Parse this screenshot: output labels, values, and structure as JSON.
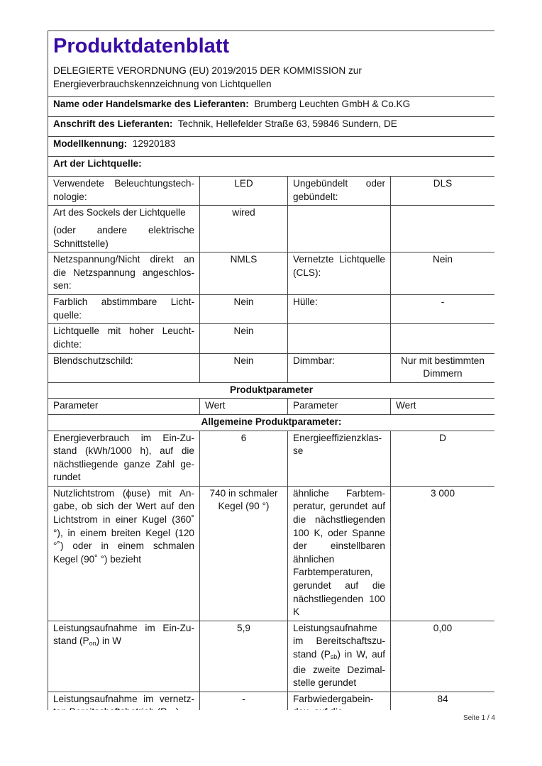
{
  "title": "Produktdatenblatt",
  "subtitle_line1": "DELEGIERTE VERORDNUNG (EU) 2019/2015 DER KOMMISSION zur",
  "subtitle_line2": "Energieverbrauchskennzeichnung von Lichtquellen",
  "supplier": {
    "label": "Name oder Handelsmarke des Lieferanten:",
    "value": "Brumberg Leuchten GmbH & Co.KG"
  },
  "address": {
    "label": "Anschrift des Lieferanten:",
    "value": "Technik, Hellefelder Straße 63, 59846 Sundern, DE"
  },
  "model": {
    "label": "Modellkennung:",
    "value": "12920183"
  },
  "light_source_type": "Art der Lichtquelle:",
  "type_rows": [
    {
      "p1": "Verwendete Beleuchtungstech­nologie:",
      "v1": "LED",
      "p2": "Ungebündelt oder gebündelt:",
      "v2": "DLS"
    },
    {
      "p1": "Art des Sockels der Lichtquelle",
      "p1b": "(oder andere elektrische Schnittstelle)",
      "v1": "wired",
      "p2": "",
      "v2": ""
    },
    {
      "p1": "Netzspannung/Nicht direkt an die Netzspannung angeschlos­sen:",
      "v1": "NMLS",
      "p2": "Vernetzte Lichtquel­le (CLS):",
      "v2": "Nein"
    },
    {
      "p1": "Farblich abstimmbare Licht­quelle:",
      "v1": "Nein",
      "p2": "Hülle:",
      "v2": "-"
    },
    {
      "p1": "Lichtquelle mit hoher Leucht­dichte:",
      "v1": "Nein",
      "p2": "",
      "v2": ""
    },
    {
      "p1": "Blendschutzschild:",
      "v1": "Nein",
      "p2": "Dimmbar:",
      "v2": "Nur mit bestimm­ten Dimmern"
    }
  ],
  "product_parameters": "Produktparameter",
  "columns": [
    "Parameter",
    "Wert",
    "Parameter",
    "Wert"
  ],
  "general_parameters": "Allgemeine Produktparameter:",
  "params": [
    {
      "p1": "Energieverbrauch im Ein-Zu­stand (kWh/1000 h), auf die nächstliegende ganze Zahl ge­rundet",
      "v1": "6",
      "p2": "Energieeffizienzklas­se",
      "v2": "D"
    },
    {
      "p1": "Nutzlichtstrom (ϕuse) mit An­gabe, ob sich der Wert auf den Lichtstrom in einer Kugel (360˚ °), in einem breiten Kegel (120 °˚) oder in einem schmalen Kegel (90˚ °) bezieht",
      "v1": "740 in schma­ler Kegel (90 °)",
      "p2": "ähnliche Farbtem­peratur, gerundet auf die nächst­liegenden 100 K, oder Spanne der einstellbaren ähnli­chen Farbtempera­turen, gerundet auf die nächstliegenden 100 K",
      "v2": "3 000"
    },
    {
      "p1a": "Leistungsaufnahme im Ein-Zu­stand (P",
      "p1s": "on",
      "p1c": ") in W",
      "v1": "5,9",
      "p2a": "Leistungsaufnahme im Bereitschaftszu­stand (P",
      "p2s": "sb",
      "p2c": ") in W, auf die zweite Dezimal­stelle gerundet",
      "v2": "0,00"
    },
    {
      "p1a": "Leistungsaufnahme im vernetz­ten Bereitschaftsbetrieb (P",
      "p1s": "net",
      "p1c": ")",
      "v1": "-",
      "p2": "Farbwiedergabein­dex, auf die",
      "v2": "84"
    }
  ],
  "footer": "Seite 1 / 4"
}
